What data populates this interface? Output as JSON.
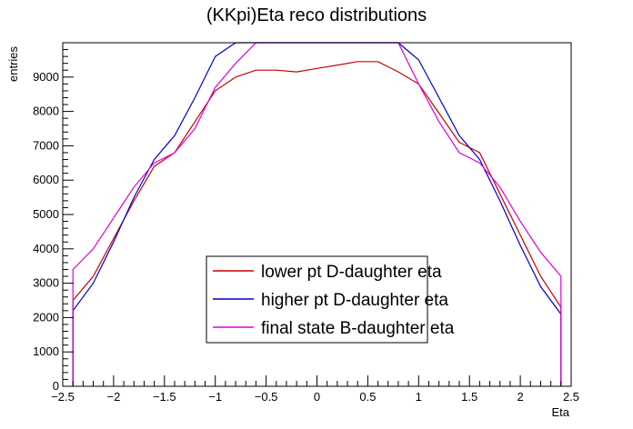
{
  "chart_data": {
    "type": "line",
    "title": "(KKpi)Eta reco distributions",
    "xlabel": "Eta",
    "ylabel": "entries",
    "xlim": [
      -2.5,
      2.5
    ],
    "ylim": [
      0,
      10000
    ],
    "grid": false,
    "legend_position": "bottom-center",
    "x_ticks": [
      -2.5,
      -2,
      -1.5,
      -1,
      -0.5,
      0,
      0.5,
      1,
      1.5,
      2,
      2.5
    ],
    "x_tick_labels": [
      "−2.5",
      "−2",
      "−1.5",
      "−1",
      "−0.5",
      "0",
      "0.5",
      "1",
      "1.5",
      "2",
      "2.5"
    ],
    "y_ticks": [
      0,
      1000,
      2000,
      3000,
      4000,
      5000,
      6000,
      7000,
      8000,
      9000
    ],
    "y_tick_labels": [
      "0",
      "1000",
      "2000",
      "3000",
      "4000",
      "5000",
      "6000",
      "7000",
      "8000",
      "9000"
    ],
    "x": [
      -2.4,
      -2.2,
      -2.0,
      -1.8,
      -1.6,
      -1.4,
      -1.2,
      -1.0,
      -0.8,
      -0.6,
      -0.4,
      -0.2,
      0.0,
      0.2,
      0.4,
      0.6,
      0.8,
      1.0,
      1.2,
      1.4,
      1.6,
      1.8,
      2.0,
      2.2,
      2.4
    ],
    "series": [
      {
        "name": "lower pt D-daughter eta",
        "color": "#cc0000",
        "values": [
          2500,
          3200,
          4300,
          5400,
          6400,
          6800,
          7700,
          8600,
          9000,
          9200,
          9200,
          9150,
          9250,
          9350,
          9450,
          9450,
          9150,
          8800,
          7950,
          7100,
          6800,
          5600,
          4400,
          3200,
          2300
        ]
      },
      {
        "name": "higher pt D-daughter eta",
        "color": "#0000cc",
        "values": [
          2200,
          3000,
          4200,
          5500,
          6600,
          7300,
          8400,
          9600,
          10000,
          10000,
          10000,
          10000,
          10000,
          10000,
          10000,
          10000,
          10000,
          9500,
          8400,
          7300,
          6600,
          5400,
          4100,
          2900,
          2100
        ]
      },
      {
        "name": "final state B-daughter eta",
        "color": "#dd00dd",
        "values": [
          3400,
          4000,
          4900,
          5800,
          6500,
          6800,
          7500,
          8700,
          9400,
          10000,
          10000,
          10000,
          10000,
          10000,
          10000,
          10000,
          10000,
          8800,
          7700,
          6800,
          6500,
          5800,
          4800,
          3900,
          3200
        ]
      }
    ]
  }
}
